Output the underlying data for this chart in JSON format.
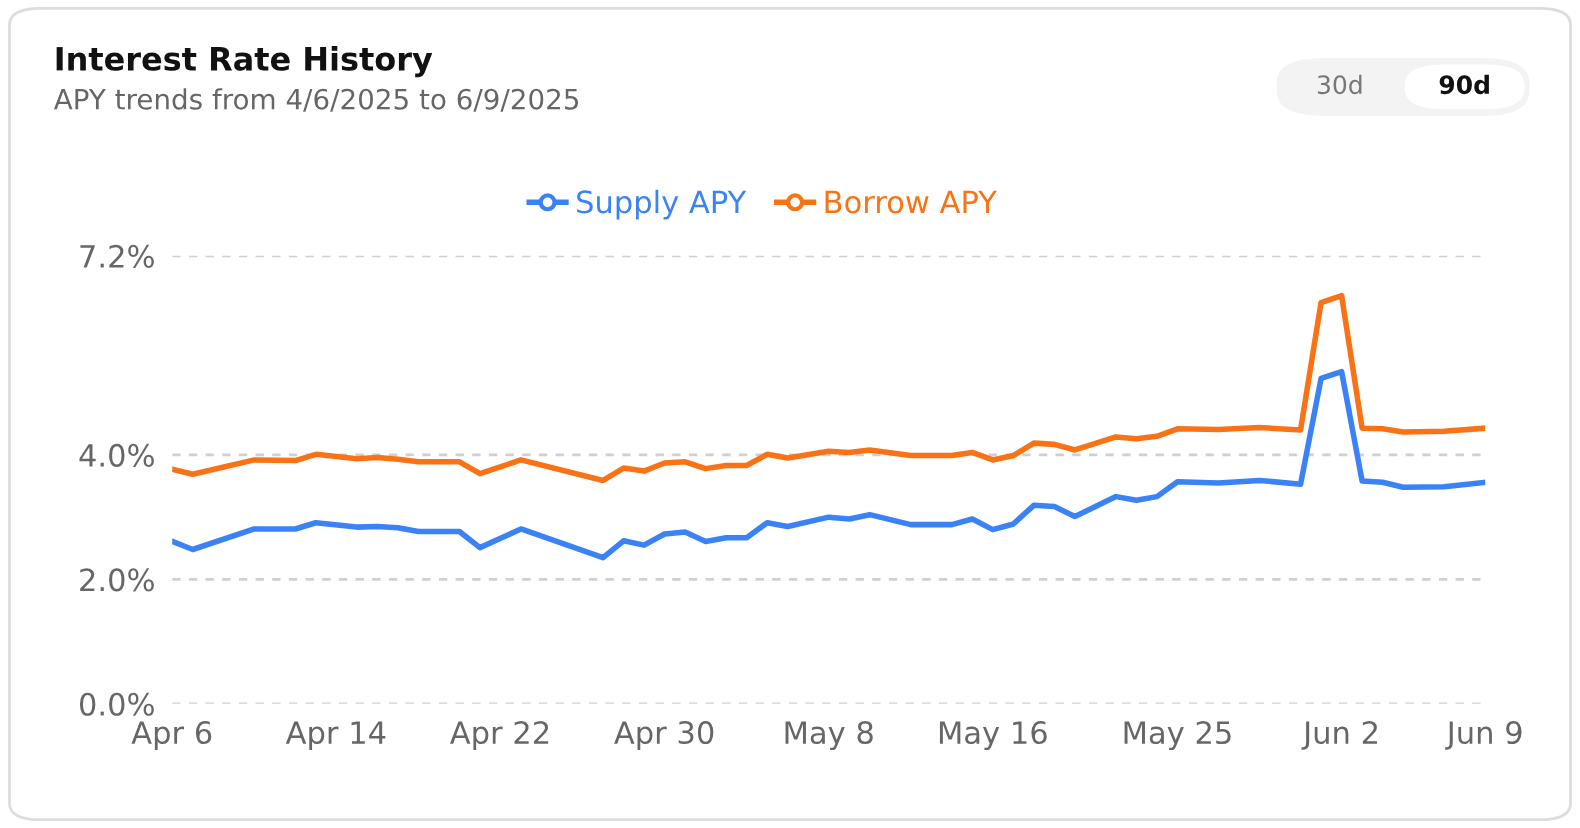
{
  "chart_data": {
    "type": "line",
    "title": "Interest Rate History",
    "subtitle": "APY trends from 4/6/2025 to 6/9/2025",
    "annotations": [
      "30d",
      "90d"
    ],
    "x": [
      "2025-04-06",
      "2025-04-07",
      "2025-04-10",
      "2025-04-12",
      "2025-04-13",
      "2025-04-15",
      "2025-04-16",
      "2025-04-17",
      "2025-04-18",
      "2025-04-20",
      "2025-04-21",
      "2025-04-23",
      "2025-04-27",
      "2025-04-28",
      "2025-04-29",
      "2025-04-30",
      "2025-05-01",
      "2025-05-02",
      "2025-05-03",
      "2025-05-04",
      "2025-05-05",
      "2025-05-06",
      "2025-05-08",
      "2025-05-09",
      "2025-05-10",
      "2025-05-12",
      "2025-05-14",
      "2025-05-15",
      "2025-05-16",
      "2025-05-17",
      "2025-05-18",
      "2025-05-19",
      "2025-05-20",
      "2025-05-22",
      "2025-05-23",
      "2025-05-24",
      "2025-05-25",
      "2025-05-27",
      "2025-05-29",
      "2025-05-31",
      "2025-06-01",
      "2025-06-02",
      "2025-06-03",
      "2025-06-04",
      "2025-06-05",
      "2025-06-07",
      "2025-06-09"
    ],
    "series": [
      {
        "name": "Supply APY",
        "color": "#3b82f6",
        "values": [
          2.61,
          2.48,
          2.81,
          2.81,
          2.91,
          2.84,
          2.85,
          2.83,
          2.77,
          2.77,
          2.51,
          2.81,
          2.35,
          2.62,
          2.55,
          2.73,
          2.76,
          2.61,
          2.67,
          2.67,
          2.91,
          2.85,
          3.0,
          2.97,
          3.04,
          2.88,
          2.88,
          2.97,
          2.8,
          2.89,
          3.19,
          3.17,
          3.01,
          3.33,
          3.27,
          3.33,
          3.57,
          3.55,
          3.59,
          3.53,
          5.23,
          5.34,
          3.58,
          3.56,
          3.48,
          3.49,
          3.56
        ]
      },
      {
        "name": "Borrow APY",
        "color": "#f97316",
        "values": [
          3.77,
          3.69,
          3.92,
          3.91,
          4.01,
          3.94,
          3.96,
          3.93,
          3.89,
          3.89,
          3.7,
          3.92,
          3.59,
          3.79,
          3.74,
          3.87,
          3.89,
          3.78,
          3.83,
          3.83,
          4.01,
          3.95,
          4.06,
          4.04,
          4.08,
          3.99,
          3.99,
          4.04,
          3.92,
          3.99,
          4.19,
          4.17,
          4.08,
          4.29,
          4.26,
          4.3,
          4.42,
          4.41,
          4.44,
          4.4,
          6.45,
          6.56,
          4.43,
          4.42,
          4.37,
          4.38,
          4.43
        ]
      }
    ],
    "xlim": [
      "2025-04-06",
      "2025-06-09"
    ],
    "xticks": [
      {
        "value": "2025-04-06",
        "label": "Apr 6"
      },
      {
        "value": "2025-04-14",
        "label": "Apr 14"
      },
      {
        "value": "2025-04-22",
        "label": "Apr 22"
      },
      {
        "value": "2025-04-30",
        "label": "Apr 30"
      },
      {
        "value": "2025-05-08",
        "label": "May 8"
      },
      {
        "value": "2025-05-16",
        "label": "May 16"
      },
      {
        "value": "2025-05-25",
        "label": "May 25"
      },
      {
        "value": "2025-06-02",
        "label": "Jun 2"
      },
      {
        "value": "2025-06-09",
        "label": "Jun 9"
      }
    ],
    "ylim": [
      0,
      7.2
    ],
    "yticks": [
      {
        "value": 0,
        "label": "0.0%"
      },
      {
        "value": 2,
        "label": "2.0%"
      },
      {
        "value": 4,
        "label": "4.0%"
      },
      {
        "value": 7.2,
        "label": "7.2%"
      }
    ],
    "grid": "y",
    "legend": "top",
    "line_style": "solid"
  }
}
